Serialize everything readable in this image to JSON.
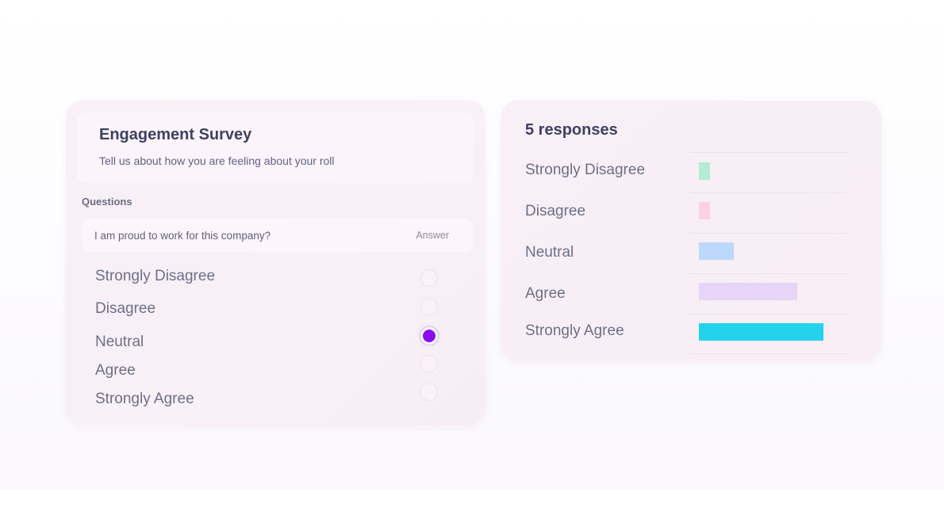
{
  "survey": {
    "title": "Engagement Survey",
    "subtitle": "Tell us about how you are feeling about your roll",
    "questions_label": "Questions",
    "question": "I am proud to work for this company?",
    "answer_label": "Answer",
    "options": [
      {
        "label": "Strongly Disagree",
        "selected": false
      },
      {
        "label": "Disagree",
        "selected": false
      },
      {
        "label": "Neutral",
        "selected": true
      },
      {
        "label": "Agree",
        "selected": false
      },
      {
        "label": "Strongly Agree",
        "selected": false
      }
    ]
  },
  "responses": {
    "title": "5 responses",
    "max_value": 1,
    "items": [
      {
        "label": "Strongly Disagree",
        "share": 0.09,
        "color": "#b2ecd3"
      },
      {
        "label": "Disagree",
        "share": 0.09,
        "color": "#fbd3e0"
      },
      {
        "label": "Neutral",
        "share": 0.28,
        "color": "#bcd8fa"
      },
      {
        "label": "Agree",
        "share": 0.79,
        "color": "#e7d5f7"
      },
      {
        "label": "Strongly Agree",
        "share": 1.0,
        "color": "#24d2ee"
      }
    ]
  }
}
